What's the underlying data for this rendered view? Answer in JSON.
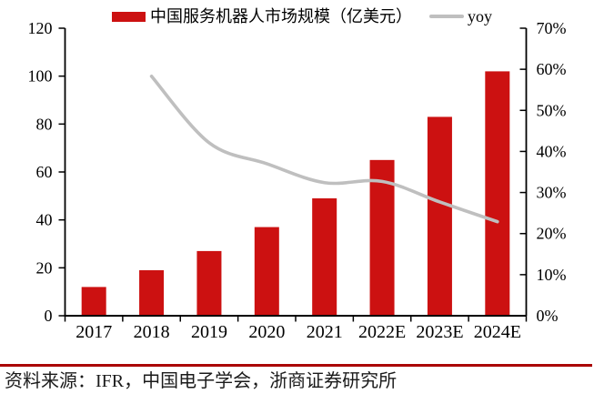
{
  "legend": {
    "items": [
      {
        "label": "中国服务机器人市场规模（亿美元）",
        "marker": "bar-swatch",
        "color": "#cc1111"
      },
      {
        "label": "yoy",
        "marker": "line-swatch",
        "color": "#bfbfbf"
      }
    ]
  },
  "footer": {
    "source_note": "资料来源：IFR，中国电子学会，浙商证券研究所",
    "separator_color": "#aa0404"
  },
  "colors": {
    "bar": "#cc1111",
    "line": "#bfbfbf",
    "axis": "#000000",
    "separator": "#aa0404"
  },
  "chart_data": {
    "type": "bar",
    "subtype": "bar-line-combo",
    "categories": [
      "2017",
      "2018",
      "2019",
      "2020",
      "2021",
      "2022E",
      "2023E",
      "2024E"
    ],
    "series": [
      {
        "name": "中国服务机器人市场规模（亿美元）",
        "type": "bar",
        "axis": "left",
        "color": "#cc1111",
        "values": [
          12,
          19,
          27,
          37,
          49,
          65,
          83,
          102
        ]
      },
      {
        "name": "yoy",
        "type": "line",
        "axis": "right",
        "color": "#bfbfbf",
        "unit": "%",
        "values": [
          null,
          58.3,
          42.1,
          37.0,
          32.4,
          32.7,
          27.7,
          22.9
        ]
      }
    ],
    "left_axis": {
      "min": 0,
      "max": 120,
      "step": 20,
      "tick_labels": [
        "0",
        "20",
        "40",
        "60",
        "80",
        "100",
        "120"
      ]
    },
    "right_axis": {
      "min": 0,
      "max": 70,
      "step": 10,
      "tick_labels": [
        "0%",
        "10%",
        "20%",
        "30%",
        "40%",
        "50%",
        "60%",
        "70%"
      ]
    },
    "grid": false,
    "legend_position": "top"
  }
}
